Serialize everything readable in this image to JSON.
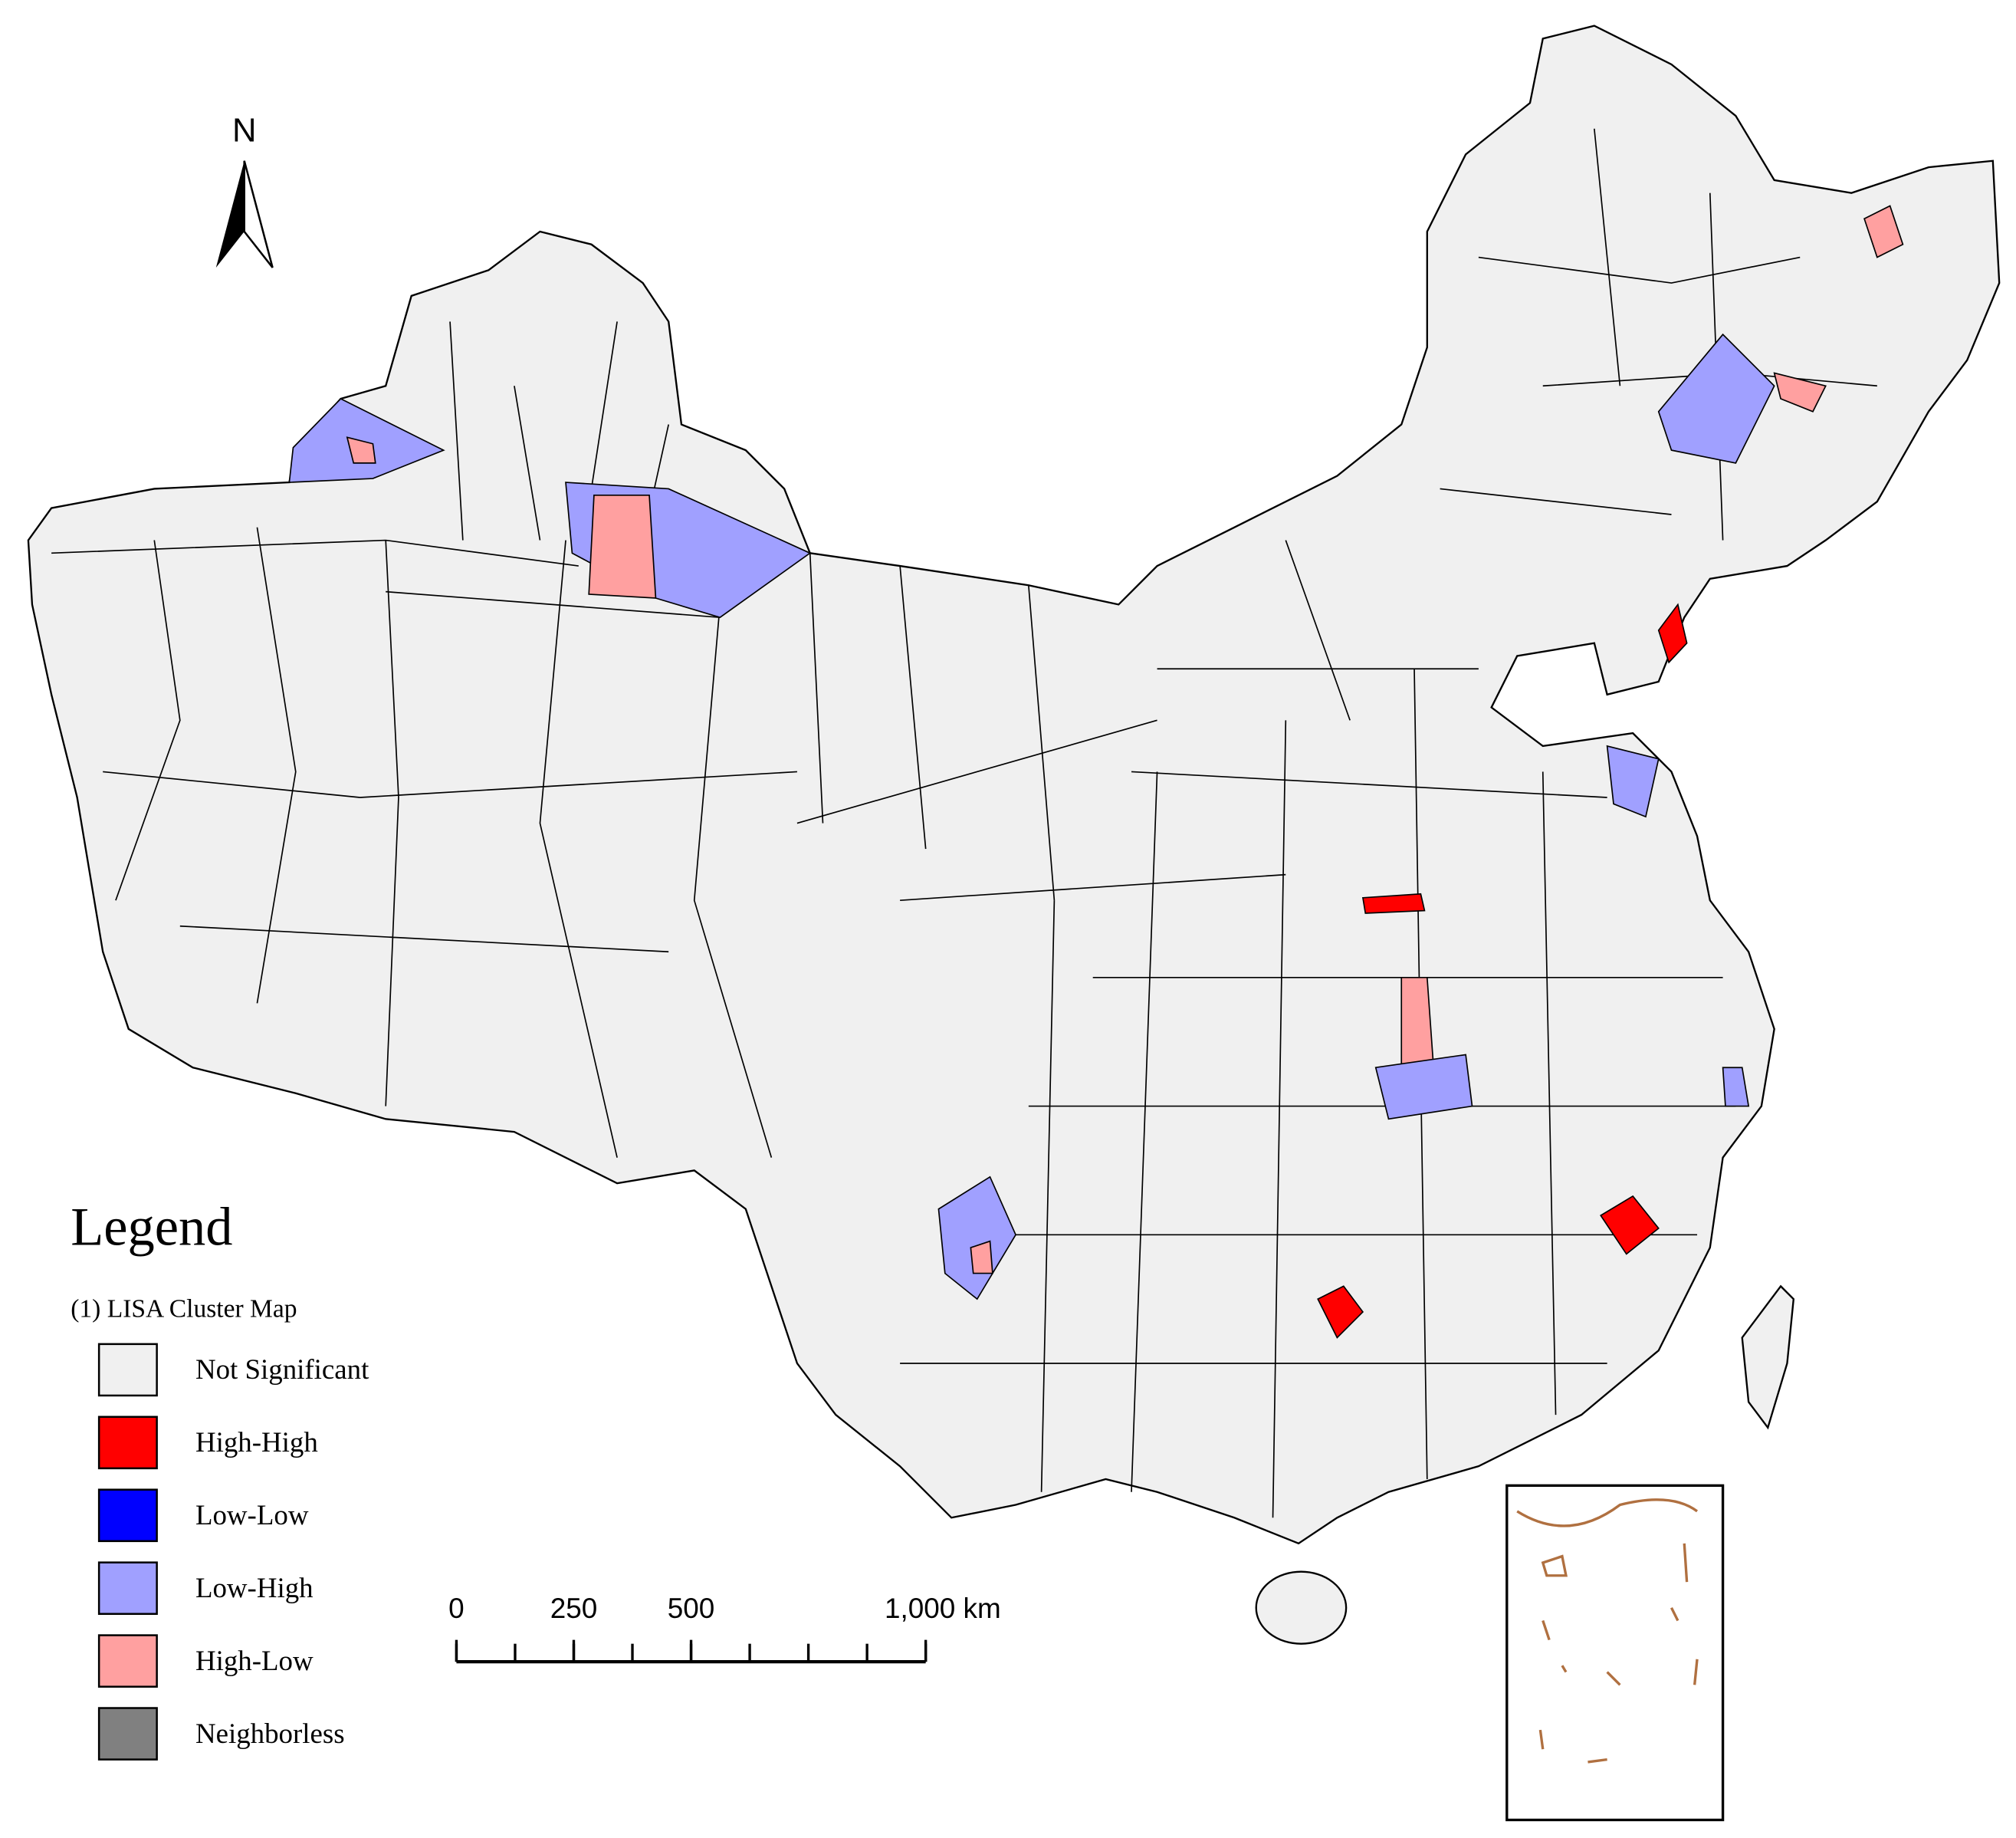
{
  "north_arrow": {
    "label": "N"
  },
  "legend": {
    "title": "Legend",
    "subtitle": "(1) LISA Cluster Map",
    "items": [
      {
        "label": "Not Significant",
        "color": "#f0f0f0"
      },
      {
        "label": "High-High",
        "color": "#ff0000"
      },
      {
        "label": "Low-Low",
        "color": "#0000ff"
      },
      {
        "label": "Low-High",
        "color": "#a0a0ff"
      },
      {
        "label": "High-Low",
        "color": "#ffa0a0"
      },
      {
        "label": "Neighborless",
        "color": "#808080"
      }
    ]
  },
  "scale_bar": {
    "ticks": [
      0,
      250,
      500,
      {
        "value": 1000,
        "label": "1,000 km"
      }
    ]
  }
}
